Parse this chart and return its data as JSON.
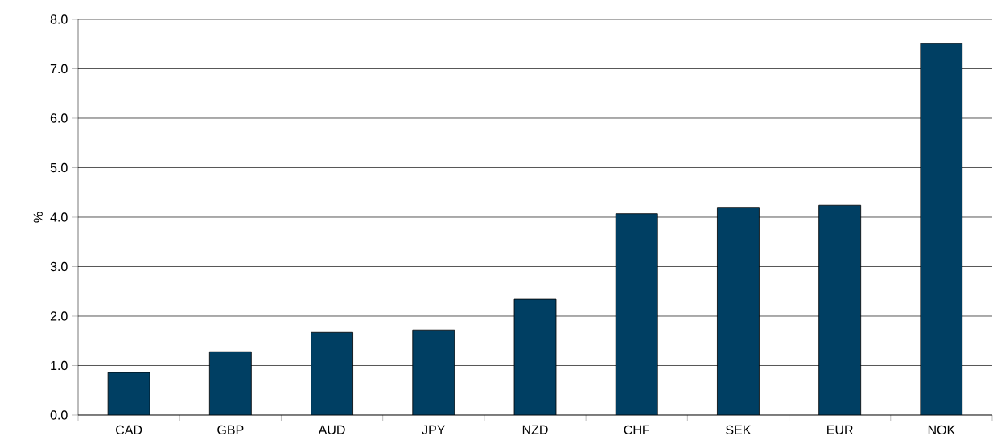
{
  "chart_data": {
    "type": "bar",
    "ylabel": "%",
    "categories": [
      "CAD",
      "GBP",
      "AUD",
      "JPY",
      "NZD",
      "CHF",
      "SEK",
      "EUR",
      "NOK"
    ],
    "values": [
      0.86,
      1.28,
      1.67,
      1.72,
      2.34,
      4.07,
      4.2,
      4.24,
      7.51
    ],
    "color": "#003f63",
    "ylim": [
      0,
      8
    ],
    "yticks": [
      {
        "value": 0,
        "label": "0.0"
      },
      {
        "value": 1,
        "label": "1.0"
      },
      {
        "value": 2,
        "label": "2.0"
      },
      {
        "value": 3,
        "label": "3.0"
      },
      {
        "value": 4,
        "label": "4.0"
      },
      {
        "value": 5,
        "label": "5.0"
      },
      {
        "value": 6,
        "label": "6.0"
      },
      {
        "value": 7,
        "label": "7.0"
      },
      {
        "value": 8,
        "label": "8.0"
      }
    ],
    "grid": "y"
  }
}
